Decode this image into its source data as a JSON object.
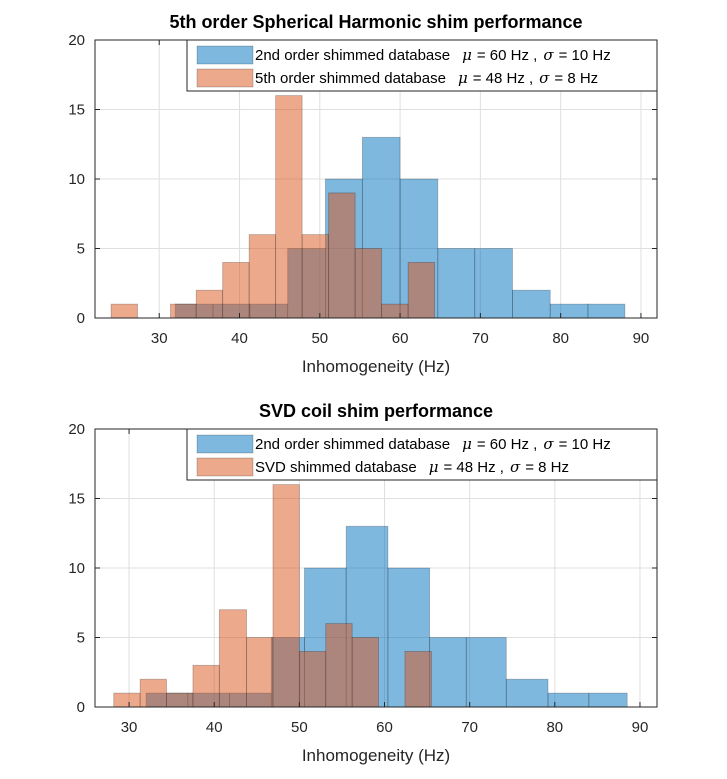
{
  "chart_data": [
    {
      "type": "histogram",
      "title": "5th order Spherical Harmonic shim performance",
      "xlabel": "Inhomogeneity (Hz)",
      "ylabel": "",
      "xlim": [
        22,
        92
      ],
      "ylim": [
        0,
        20
      ],
      "xticks": [
        30,
        40,
        50,
        60,
        70,
        80,
        90
      ],
      "yticks": [
        0,
        5,
        10,
        15,
        20
      ],
      "grid": true,
      "legend": "top-right",
      "series": [
        {
          "name": "2nd order shimmed database",
          "legend_parts": {
            "label": "2nd order shimmed database",
            "mu": "μ",
            "mu_val": "= 60 Hz ,",
            "sigma": "σ",
            "sigma_val": "= 10 Hz"
          },
          "color": "#0072BD",
          "bars": [
            {
              "x0": 32.0,
              "x1": 36.7,
              "value": 1
            },
            {
              "x0": 36.7,
              "x1": 41.3,
              "value": 1
            },
            {
              "x0": 41.3,
              "x1": 46.0,
              "value": 1
            },
            {
              "x0": 46.0,
              "x1": 50.7,
              "value": 5
            },
            {
              "x0": 50.7,
              "x1": 55.3,
              "value": 10
            },
            {
              "x0": 55.3,
              "x1": 60.0,
              "value": 13
            },
            {
              "x0": 60.0,
              "x1": 64.7,
              "value": 10
            },
            {
              "x0": 64.7,
              "x1": 69.3,
              "value": 5
            },
            {
              "x0": 69.3,
              "x1": 74.0,
              "value": 5
            },
            {
              "x0": 74.0,
              "x1": 78.7,
              "value": 2
            },
            {
              "x0": 78.7,
              "x1": 83.4,
              "value": 1
            },
            {
              "x0": 83.4,
              "x1": 88.0,
              "value": 1
            }
          ]
        },
        {
          "name": "5th order shimmed database",
          "legend_parts": {
            "label": "5th order shimmed database",
            "mu": "μ",
            "mu_val": "= 48 Hz ,",
            "sigma": "σ",
            "sigma_val": "= 8 Hz"
          },
          "color": "#D95319",
          "bars": [
            {
              "x0": 24.0,
              "x1": 27.3,
              "value": 1
            },
            {
              "x0": 31.4,
              "x1": 34.6,
              "value": 1
            },
            {
              "x0": 34.6,
              "x1": 37.9,
              "value": 2
            },
            {
              "x0": 37.9,
              "x1": 41.2,
              "value": 4
            },
            {
              "x0": 41.2,
              "x1": 44.5,
              "value": 6
            },
            {
              "x0": 44.5,
              "x1": 47.8,
              "value": 16
            },
            {
              "x0": 47.8,
              "x1": 51.1,
              "value": 6
            },
            {
              "x0": 51.1,
              "x1": 54.4,
              "value": 9
            },
            {
              "x0": 54.4,
              "x1": 57.7,
              "value": 5
            },
            {
              "x0": 57.7,
              "x1": 61.0,
              "value": 1
            },
            {
              "x0": 61.0,
              "x1": 64.3,
              "value": 4
            }
          ]
        }
      ]
    },
    {
      "type": "histogram",
      "title": "SVD coil shim performance",
      "xlabel": "Inhomogeneity (Hz)",
      "ylabel": "",
      "xlim": [
        26,
        92
      ],
      "ylim": [
        0,
        20
      ],
      "xticks": [
        30,
        40,
        50,
        60,
        70,
        80,
        90
      ],
      "yticks": [
        0,
        5,
        10,
        15,
        20
      ],
      "grid": true,
      "legend": "top-right",
      "series": [
        {
          "name": "2nd order shimmed database",
          "legend_parts": {
            "label": "2nd order shimmed database",
            "mu": "μ",
            "mu_val": "= 60 Hz ,",
            "sigma": "σ",
            "sigma_val": "= 10 Hz"
          },
          "color": "#0072BD",
          "bars": [
            {
              "x0": 32.0,
              "x1": 36.9,
              "value": 1
            },
            {
              "x0": 36.9,
              "x1": 41.8,
              "value": 1
            },
            {
              "x0": 41.8,
              "x1": 46.7,
              "value": 1
            },
            {
              "x0": 46.7,
              "x1": 50.6,
              "value": 5
            },
            {
              "x0": 50.6,
              "x1": 55.5,
              "value": 10
            },
            {
              "x0": 55.5,
              "x1": 60.4,
              "value": 13
            },
            {
              "x0": 60.4,
              "x1": 65.3,
              "value": 10
            },
            {
              "x0": 65.3,
              "x1": 69.6,
              "value": 5
            },
            {
              "x0": 69.6,
              "x1": 74.3,
              "value": 5
            },
            {
              "x0": 74.3,
              "x1": 79.2,
              "value": 2
            },
            {
              "x0": 79.2,
              "x1": 84.0,
              "value": 1
            },
            {
              "x0": 84.0,
              "x1": 88.5,
              "value": 1
            }
          ]
        },
        {
          "name": "SVD shimmed database",
          "legend_parts": {
            "label": "SVD shimmed database",
            "mu": "μ",
            "mu_val": "= 48 Hz ,",
            "sigma": "σ",
            "sigma_val": "= 8 Hz"
          },
          "color": "#D95319",
          "bars": [
            {
              "x0": 28.2,
              "x1": 31.3,
              "value": 1
            },
            {
              "x0": 31.3,
              "x1": 34.4,
              "value": 2
            },
            {
              "x0": 34.4,
              "x1": 37.5,
              "value": 1
            },
            {
              "x0": 37.5,
              "x1": 40.6,
              "value": 3
            },
            {
              "x0": 40.6,
              "x1": 43.8,
              "value": 7
            },
            {
              "x0": 43.8,
              "x1": 46.9,
              "value": 5
            },
            {
              "x0": 46.9,
              "x1": 50.0,
              "value": 16
            },
            {
              "x0": 50.0,
              "x1": 53.1,
              "value": 4
            },
            {
              "x0": 53.1,
              "x1": 56.2,
              "value": 6
            },
            {
              "x0": 56.2,
              "x1": 59.3,
              "value": 5
            },
            {
              "x0": 59.3,
              "x1": 62.4,
              "value": 0
            },
            {
              "x0": 62.4,
              "x1": 65.5,
              "value": 4
            }
          ]
        }
      ]
    }
  ]
}
